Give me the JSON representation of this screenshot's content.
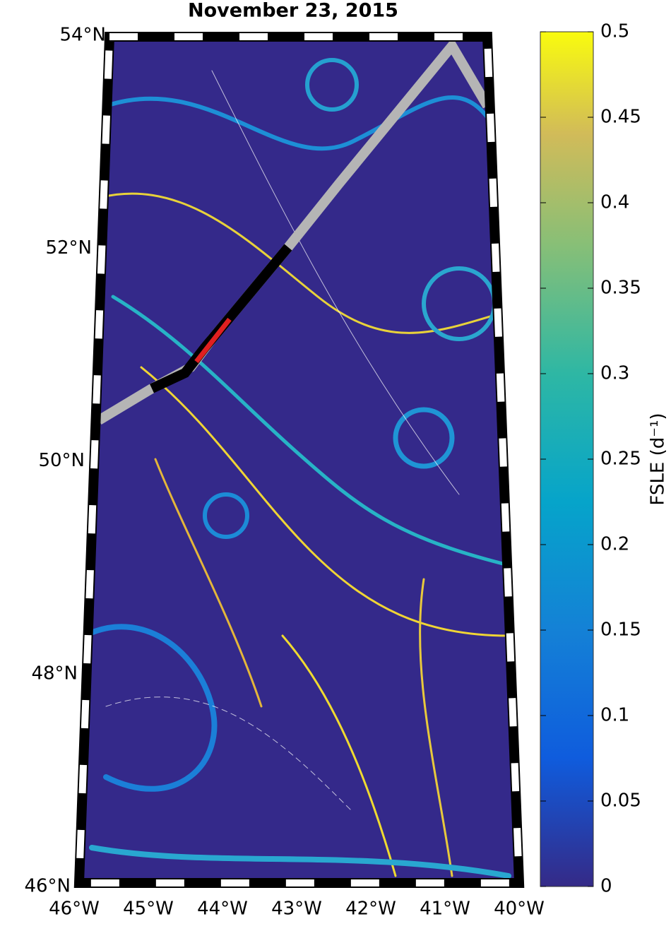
{
  "title": "November 23, 2015",
  "map": {
    "lat_labels": [
      "54°N",
      "52°N",
      "50°N",
      "48°N",
      "46°N"
    ],
    "lon_labels": [
      "46°W",
      "45°W",
      "44°W",
      "43°W",
      "42°W",
      "41°W",
      "40°W"
    ]
  },
  "colorbar": {
    "label": "FSLE (d⁻¹)",
    "lim": [
      0,
      0.5
    ],
    "ticks": [
      0,
      0.05,
      0.1,
      0.15,
      0.2,
      0.25,
      0.3,
      0.35,
      0.4,
      0.45,
      0.5
    ]
  }
}
